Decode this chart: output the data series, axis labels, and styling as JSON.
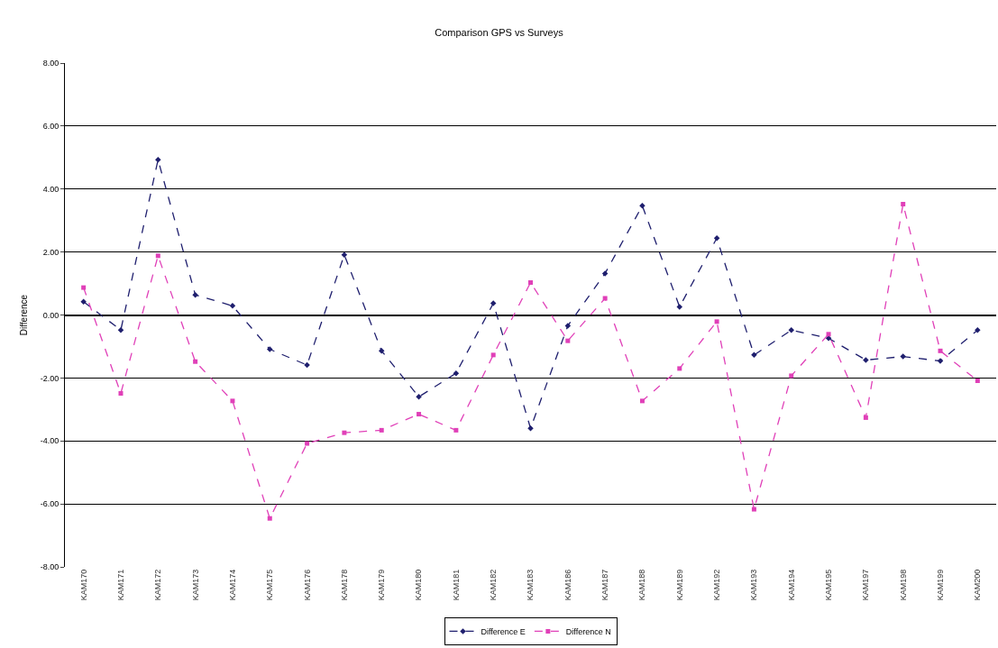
{
  "chart_data": {
    "type": "line",
    "title": "Comparison GPS vs Surveys",
    "ylabel": "Difference",
    "categories": [
      "KAM170",
      "KAM171",
      "KAM172",
      "KAM173",
      "KAM174",
      "KAM175",
      "KAM176",
      "KAM178",
      "KAM179",
      "KAM180",
      "KAM181",
      "KAM182",
      "KAM183",
      "KAM186",
      "KAM187",
      "KAM188",
      "KAM189",
      "KAM192",
      "KAM193",
      "KAM194",
      "KAM195",
      "KAM197",
      "KAM198",
      "KAM199",
      "KAM200"
    ],
    "series": [
      {
        "name": "Difference E",
        "color": "#1f1f6e",
        "marker": "diamond",
        "values": [
          0.42,
          -0.48,
          4.93,
          0.64,
          0.29,
          -1.09,
          -1.59,
          1.91,
          -1.14,
          -2.6,
          -1.85,
          0.37,
          -3.6,
          -0.34,
          1.32,
          3.47,
          0.26,
          2.44,
          -1.27,
          -0.48,
          -0.74,
          -1.43,
          -1.32,
          -1.46,
          -0.48
        ]
      },
      {
        "name": "Difference N",
        "color": "#e040b8",
        "marker": "square",
        "values": [
          0.87,
          -2.49,
          1.88,
          -1.48,
          -2.73,
          -6.46,
          -4.08,
          -3.74,
          -3.66,
          -3.15,
          -3.66,
          -1.27,
          1.03,
          -0.82,
          0.53,
          -2.73,
          -1.7,
          -0.21,
          -6.17,
          -1.93,
          -0.61,
          -3.26,
          3.52,
          -1.14,
          -2.09
        ]
      }
    ],
    "ylim": [
      -8,
      8
    ],
    "yticks": [
      {
        "value": 8,
        "label": "8.00"
      },
      {
        "value": 6,
        "label": "6.00"
      },
      {
        "value": 4,
        "label": "4.00"
      },
      {
        "value": 2,
        "label": "2.00"
      },
      {
        "value": 0,
        "label": "0.00"
      },
      {
        "value": -2,
        "label": "-2.00"
      },
      {
        "value": -4,
        "label": "-4.00"
      },
      {
        "value": -6,
        "label": "-6.00"
      },
      {
        "value": -8,
        "label": "-8.00"
      }
    ],
    "grid": "y",
    "legend": "bottom",
    "line_style": "dashed"
  }
}
